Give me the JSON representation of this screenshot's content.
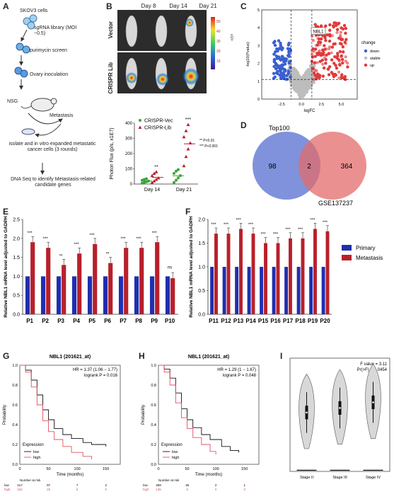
{
  "figure": {
    "panel_labels": [
      "A",
      "B",
      "C",
      "D",
      "E",
      "F",
      "G",
      "H",
      "I"
    ]
  },
  "panelA": {
    "steps": [
      "SKOV3 cells",
      "sgRNA library (MOI ~0.5)",
      "purimycin screen",
      "Ovary inoculation",
      "NSG",
      "Metastasis",
      "isolate and in vitro expanded metastatic cancer cells (3 rounds)",
      "DNA Seq to identify Metastasis-related candidate genes"
    ]
  },
  "panelB": {
    "days": [
      "Day 8",
      "Day 14",
      "Day 21"
    ],
    "rows": [
      "Vector",
      "CRISPR Lib"
    ],
    "colorbar_ticks": [
      "50",
      "40",
      "30",
      "20",
      "10"
    ],
    "colorbar_unit": "x10⁶",
    "chart_data": {
      "type": "scatter",
      "ylabel": "Photon Flux (p/s, x1E7)",
      "categories": [
        "Day 14",
        "Day 21"
      ],
      "ylim": [
        0,
        400
      ],
      "yticks": [
        "0",
        "100",
        "200",
        "300",
        "400"
      ],
      "series": [
        {
          "name": "CRISPR-Vec",
          "color": "#3aa53a",
          "values": [
            [
              5,
              10,
              15,
              20,
              25,
              30,
              35
            ],
            [
              10,
              25,
              40,
              55,
              70,
              85,
              95
            ]
          ]
        },
        {
          "name": "CRISPR-Lib",
          "color": "#b8202a",
          "values": [
            [
              10,
              20,
              30,
              40,
              55,
              70,
              80
            ],
            [
              120,
              180,
              230,
              270,
              310,
              350,
              390
            ]
          ]
        }
      ],
      "significance": [
        "**",
        "***"
      ],
      "stats_legend": [
        "** P<0.01",
        "*** P<0.001"
      ]
    }
  },
  "panelC": {
    "chart_data": {
      "type": "scatter",
      "title": "",
      "xlabel": "logFC",
      "ylabel": "-log10(Pvalue)",
      "xlim": [
        -5,
        7
      ],
      "ylim": [
        0,
        5
      ],
      "xticks": [
        "-2.5",
        "0.0",
        "2.5",
        "5.0"
      ],
      "yticks": [
        "0",
        "1",
        "2",
        "3",
        "4",
        "5"
      ],
      "annotation": "NBL1",
      "legend_title": "change",
      "legend": [
        {
          "name": "down",
          "color": "#3a5fd0"
        },
        {
          "name": "stable",
          "color": "#bdbdbd"
        },
        {
          "name": "up",
          "color": "#e03a3a"
        }
      ]
    }
  },
  "panelD": {
    "chart_data": {
      "type": "venn",
      "sets": [
        {
          "name": "Top100",
          "only": 98,
          "color": "#6a7fd6"
        },
        {
          "name": "GSE137237",
          "only": 364,
          "color": "#e36b6b"
        }
      ],
      "overlap": 2
    }
  },
  "panelE": {
    "chart_data": {
      "type": "bar",
      "ylabel": "Relative NBL1 mRNA level adjusted to GADPH",
      "ylim": [
        0,
        2.5
      ],
      "yticks": [
        "0.0",
        "0.5",
        "1.0",
        "1.5",
        "2.0",
        "2.5"
      ],
      "categories": [
        "P1",
        "P2",
        "P3",
        "P4",
        "P5",
        "P6",
        "P7",
        "P8",
        "P9",
        "P10"
      ],
      "series": [
        {
          "name": "Primary",
          "color": "#1f2fb0",
          "values": [
            1,
            1,
            1,
            1,
            1,
            1,
            1,
            1,
            1,
            1
          ]
        },
        {
          "name": "Metastasis",
          "color": "#b8202a",
          "values": [
            1.9,
            1.75,
            1.3,
            1.6,
            1.85,
            1.35,
            1.75,
            1.75,
            1.9,
            0.95
          ]
        }
      ],
      "significance": [
        "***",
        "***",
        "**",
        "***",
        "***",
        "**",
        "***",
        "***",
        "***",
        "ns"
      ]
    }
  },
  "panelF": {
    "chart_data": {
      "type": "bar",
      "ylabel": "Relative NBL1 mRNA level adjusted to GADPH",
      "ylim": [
        0,
        2.0
      ],
      "yticks": [
        "0.0",
        "0.5",
        "1.0",
        "1.5",
        "2.0"
      ],
      "categories": [
        "P11",
        "P12",
        "P13",
        "P14",
        "P15",
        "P16",
        "P17",
        "P18",
        "P19",
        "P20"
      ],
      "series": [
        {
          "name": "Primary",
          "color": "#1f2fb0",
          "values": [
            1,
            1,
            1,
            1,
            1,
            1,
            1,
            1,
            1,
            1
          ]
        },
        {
          "name": "Metastasis",
          "color": "#b8202a",
          "values": [
            1.7,
            1.7,
            1.8,
            1.7,
            1.5,
            1.5,
            1.6,
            1.6,
            1.8,
            1.75
          ]
        }
      ],
      "significance": [
        "***",
        "***",
        "***",
        "***",
        "***",
        "***",
        "***",
        "***",
        "***",
        "***"
      ]
    }
  },
  "panelG": {
    "chart_data": {
      "type": "line",
      "title": "NBL1 (201621_at)",
      "xlabel": "Time (months)",
      "ylabel": "Probability",
      "xlim": [
        0,
        175
      ],
      "ylim": [
        0,
        1
      ],
      "xticks": [
        "0",
        "50",
        "100",
        "150"
      ],
      "yticks": [
        "0.0",
        "0.2",
        "0.4",
        "0.6",
        "0.8",
        "1.0"
      ],
      "hr_text": "HR = 1.37 (1.06 − 1.77)",
      "p_text": "logrank P = 0.016",
      "legend_title": "Expression",
      "series": [
        {
          "name": "low",
          "color": "#111111",
          "points": [
            [
              0,
              1
            ],
            [
              10,
              0.95
            ],
            [
              20,
              0.85
            ],
            [
              30,
              0.7
            ],
            [
              40,
              0.55
            ],
            [
              50,
              0.45
            ],
            [
              60,
              0.36
            ],
            [
              75,
              0.3
            ],
            [
              90,
              0.26
            ],
            [
              110,
              0.22
            ],
            [
              125,
              0.2
            ],
            [
              150,
              0.18
            ]
          ]
        },
        {
          "name": "high",
          "color": "#e05060",
          "points": [
            [
              0,
              1
            ],
            [
              10,
              0.93
            ],
            [
              20,
              0.78
            ],
            [
              30,
              0.6
            ],
            [
              40,
              0.44
            ],
            [
              50,
              0.33
            ],
            [
              60,
              0.25
            ],
            [
              75,
              0.18
            ],
            [
              90,
              0.12
            ],
            [
              110,
              0.08
            ],
            [
              125,
              0.05
            ]
          ]
        }
      ],
      "risk_table_label": "Number at risk",
      "risk_low": [
        "417",
        "97",
        "7",
        "2"
      ],
      "risk_high": [
        "162",
        "25",
        "5",
        "0"
      ]
    }
  },
  "panelH": {
    "chart_data": {
      "type": "line",
      "title": "NBL1 (201621_at)",
      "xlabel": "Time (months)",
      "ylabel": "Probability",
      "xlim": [
        0,
        175
      ],
      "ylim": [
        0,
        1
      ],
      "xticks": [
        "0",
        "50",
        "100",
        "150"
      ],
      "yticks": [
        "0.0",
        "0.2",
        "0.4",
        "0.6",
        "0.8",
        "1.0"
      ],
      "hr_text": "HR = 1.29 (1 − 1.67)",
      "p_text": "logrank P = 0.048",
      "legend_title": "Expression",
      "series": [
        {
          "name": "low",
          "color": "#111111",
          "points": [
            [
              0,
              1
            ],
            [
              10,
              0.96
            ],
            [
              20,
              0.87
            ],
            [
              30,
              0.72
            ],
            [
              40,
              0.56
            ],
            [
              50,
              0.45
            ],
            [
              60,
              0.37
            ],
            [
              75,
              0.3
            ],
            [
              90,
              0.25
            ],
            [
              110,
              0.18
            ],
            [
              125,
              0.14
            ],
            [
              140,
              0.12
            ]
          ]
        },
        {
          "name": "high",
          "color": "#e05060",
          "points": [
            [
              0,
              1
            ],
            [
              10,
              0.93
            ],
            [
              20,
              0.8
            ],
            [
              30,
              0.62
            ],
            [
              40,
              0.47
            ],
            [
              50,
              0.36
            ],
            [
              60,
              0.27
            ],
            [
              75,
              0.2
            ],
            [
              90,
              0.13
            ],
            [
              100,
              0.1
            ]
          ]
        }
      ],
      "risk_table_label": "Number at risk",
      "risk_low": [
        "369",
        "35",
        "2",
        "1"
      ],
      "risk_high": [
        "135",
        "6",
        "0",
        "0"
      ]
    }
  },
  "panelI": {
    "chart_data": {
      "type": "violin",
      "categories": [
        "Stage II",
        "Stage III",
        "Stage IV"
      ],
      "median": [
        5.2,
        5.6,
        6.1
      ],
      "f_text": "F value = 3.11",
      "p_text": "Pr(>F) = 0.0454",
      "ylim": [
        0,
        10
      ],
      "yticks": [
        "0",
        "2",
        "4",
        "6",
        "8",
        "10"
      ]
    }
  }
}
